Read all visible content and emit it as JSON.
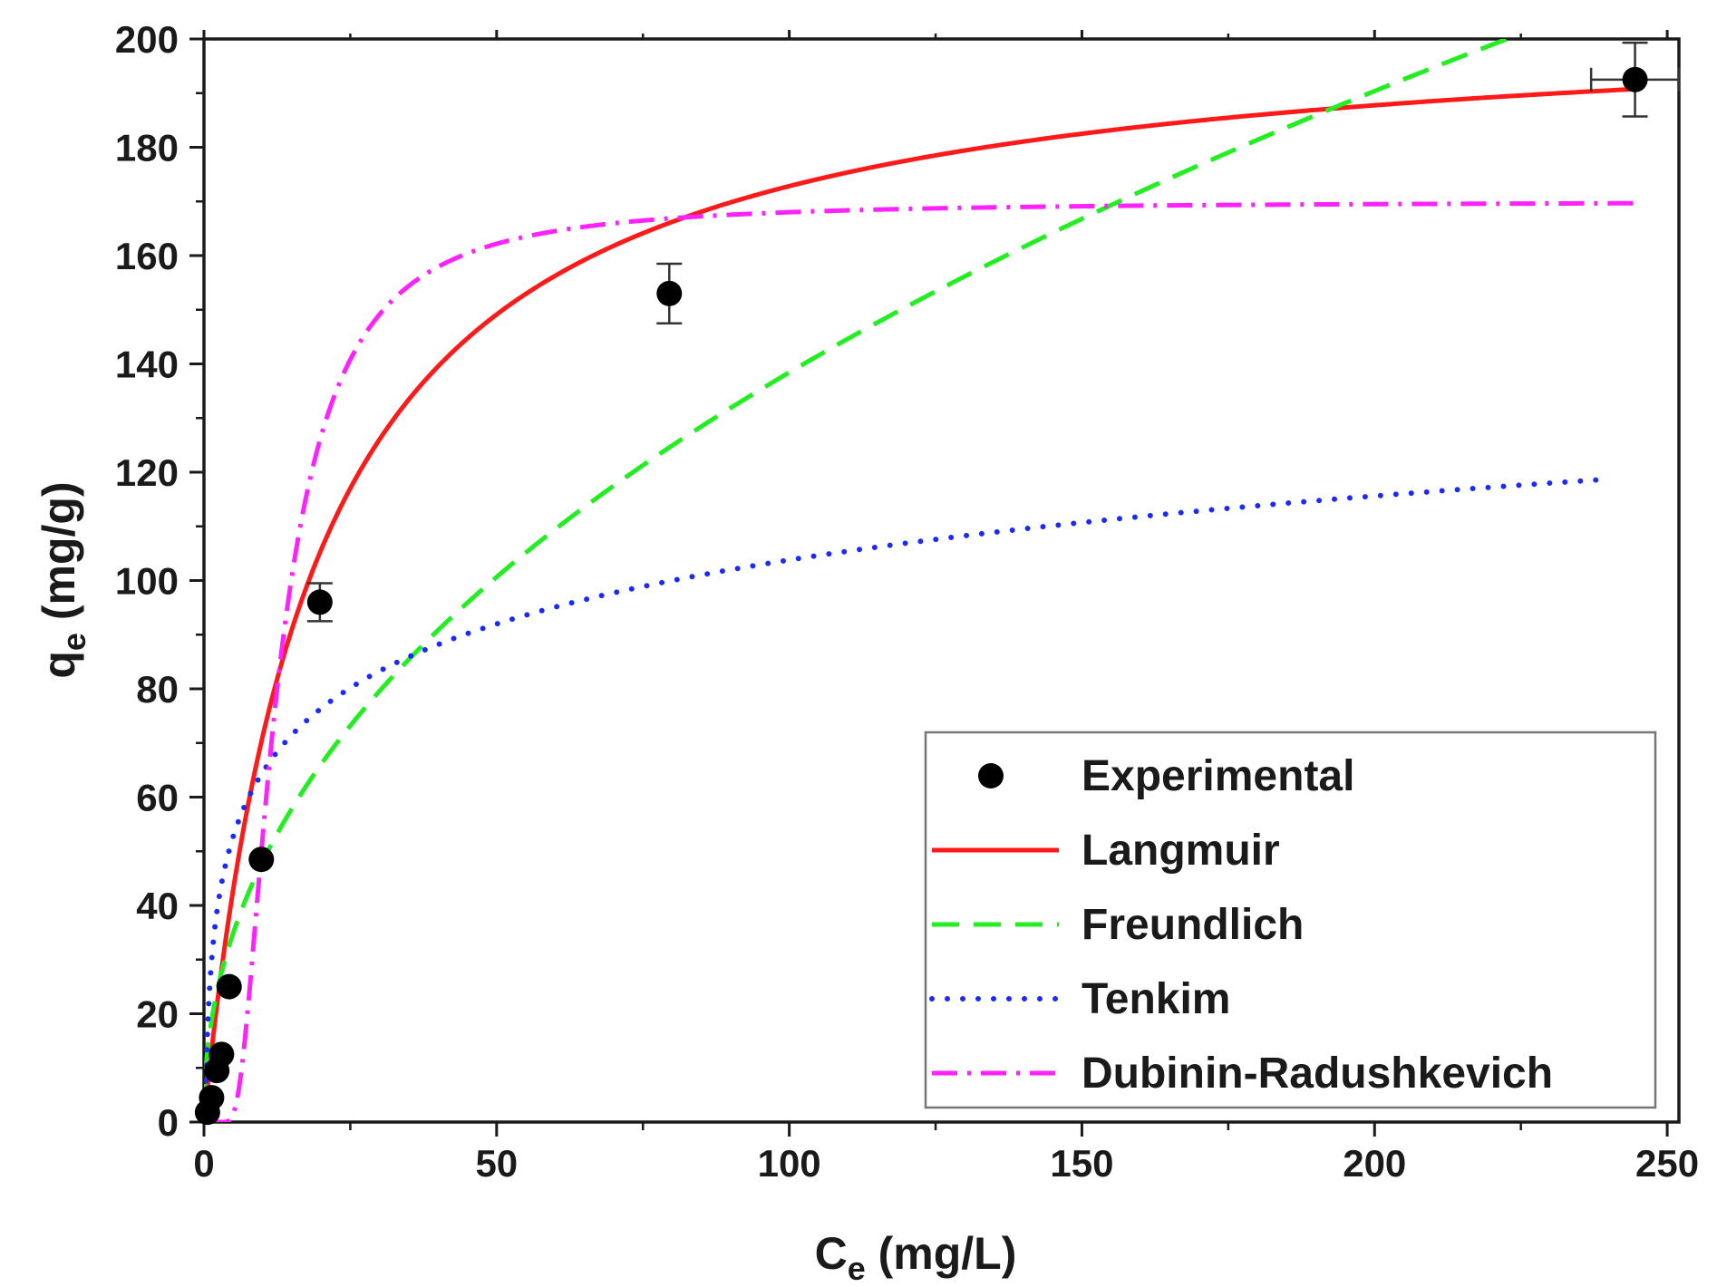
{
  "chart_data": {
    "type": "scatter",
    "xlabel": {
      "main": "C",
      "sub": "e",
      "unit": " (mg/L)"
    },
    "ylabel": {
      "main": "q",
      "sub": "e",
      "unit": " (mg/g)"
    },
    "xlim": [
      0,
      252
    ],
    "ylim": [
      0,
      200
    ],
    "xticks": [
      0,
      50,
      100,
      150,
      200,
      250
    ],
    "yticks": [
      0,
      20,
      40,
      60,
      80,
      100,
      120,
      140,
      160,
      180,
      200
    ],
    "legend_position": "bottom-right",
    "colors": {
      "experimental": "#000000",
      "langmuir": "#ff1a1a",
      "freundlich": "#22ee22",
      "tenkim": "#1a2aff",
      "dubinin": "#ff22ff",
      "axis": "#1a1a1a"
    },
    "experimental": {
      "name": "Experimental",
      "points": [
        {
          "x": 0.6,
          "y": 1.8
        },
        {
          "x": 1.3,
          "y": 4.5
        },
        {
          "x": 2.2,
          "y": 9.5
        },
        {
          "x": 3.0,
          "y": 12.5
        },
        {
          "x": 4.3,
          "y": 25.0
        },
        {
          "x": 9.8,
          "y": 48.5
        },
        {
          "x": 19.8,
          "y": 96.0,
          "yerr": 3.5
        },
        {
          "x": 79.5,
          "y": 153.0,
          "yerr": 5.5
        },
        {
          "x": 244.5,
          "y": 192.5,
          "yerr": 6.8,
          "xerr": 7.5
        }
      ]
    },
    "series": [
      {
        "name": "Langmuir",
        "key": "langmuir",
        "model": "langmuir",
        "params": {
          "qmax": 205.5,
          "KL": 0.0529
        },
        "x_range": [
          0.01,
          244.5
        ]
      },
      {
        "name": "Freundlich",
        "key": "freundlich",
        "model": "freundlich",
        "params": {
          "KF": 16.66,
          "n": 2.175
        },
        "x_range": [
          0.01,
          227.5
        ]
      },
      {
        "name": "Tenkim",
        "key": "tenkim",
        "model": "temkin",
        "params": {
          "B": 17.04,
          "KT": 4.42
        },
        "x_range": [
          0.3,
          238
        ]
      },
      {
        "name": "Dubinin-Radushkevich",
        "key": "dubinin",
        "model": "dubinin",
        "params": {
          "qm": 170.0,
          "K": 117.8
        },
        "x_range": [
          0.2,
          244.5
        ]
      }
    ]
  }
}
